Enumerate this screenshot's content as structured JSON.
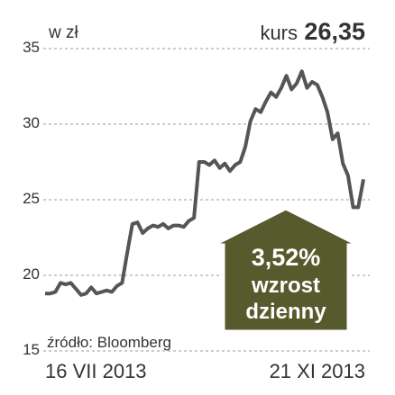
{
  "chart_data": {
    "type": "line",
    "unit_label": "w zł",
    "price_label": "kurs",
    "price": "26,35",
    "source": "źródło: Bloomberg",
    "badge": {
      "change": "3,52%",
      "line1": "wzrost",
      "line2": "dzienny"
    },
    "color": "#555555",
    "categories": [
      "16 VII 2013",
      null,
      null,
      null,
      null,
      null,
      null,
      null,
      null,
      null,
      null,
      null,
      null,
      null,
      null,
      null,
      null,
      null,
      null,
      null,
      null,
      null,
      null,
      null,
      null,
      null,
      null,
      null,
      null,
      null,
      null,
      null,
      null,
      null,
      null,
      null,
      null,
      null,
      null,
      null,
      null,
      null,
      null,
      null,
      null,
      null,
      null,
      null,
      null,
      null,
      null,
      null,
      null,
      null,
      null,
      null,
      null,
      null,
      null,
      null,
      null,
      null,
      "21 XI 2013"
    ],
    "values": [
      18.8,
      18.8,
      18.9,
      19.5,
      19.4,
      19.5,
      19.1,
      18.7,
      18.8,
      19.2,
      18.8,
      18.9,
      19.0,
      18.9,
      19.3,
      19.5,
      21.5,
      23.4,
      23.5,
      22.8,
      23.1,
      23.3,
      23.2,
      23.4,
      23.1,
      23.3,
      23.3,
      23.2,
      23.6,
      23.8,
      27.5,
      27.5,
      27.3,
      27.6,
      27.1,
      27.4,
      26.9,
      27.3,
      27.5,
      28.5,
      30.2,
      31.0,
      30.8,
      31.5,
      32.1,
      31.8,
      32.4,
      33.2,
      32.3,
      32.7,
      33.5,
      32.4,
      32.8,
      32.6,
      31.8,
      30.8,
      29.0,
      29.4,
      27.4,
      26.6,
      24.5,
      24.5,
      26.35
    ],
    "ylim": [
      15,
      35
    ],
    "yticks": [
      15,
      20,
      25,
      30,
      35
    ],
    "grid": true
  }
}
